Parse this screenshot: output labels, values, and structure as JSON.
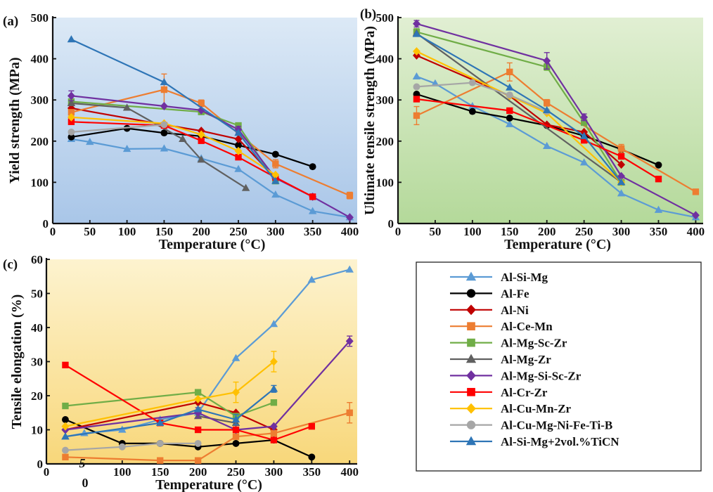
{
  "chart_data": [
    {
      "type": "line",
      "panel_label": "(a)",
      "xlabel": "Temperature (°C)",
      "ylabel": "Yield strength (MPa)",
      "xlim": [
        0,
        410
      ],
      "ylim": [
        0,
        500
      ],
      "xticks": [
        0,
        50,
        100,
        150,
        200,
        250,
        300,
        350,
        400
      ],
      "yticks": [
        0,
        100,
        200,
        300,
        400,
        500
      ],
      "background": [
        "#dce9f6",
        "#a9c6e8"
      ],
      "series": [
        {
          "name": "Al-Si-Mg",
          "x": [
            25,
            50,
            100,
            150,
            200,
            250,
            300,
            350,
            400
          ],
          "y": [
            205,
            198,
            181,
            182,
            158,
            132,
            70,
            30,
            15
          ]
        },
        {
          "name": "Al-Fe",
          "x": [
            25,
            100,
            150,
            200,
            250,
            300,
            350
          ],
          "y": [
            210,
            231,
            220,
            212,
            190,
            168,
            138
          ]
        },
        {
          "name": "Al-Ni",
          "x": [
            25,
            150,
            200,
            250,
            300
          ],
          "y": [
            280,
            240,
            225,
            205,
            110
          ]
        },
        {
          "name": "Al-Ce-Mn",
          "x": [
            25,
            150,
            200,
            300,
            400
          ],
          "y": [
            270,
            325,
            292,
            145,
            68
          ],
          "err": [
            0,
            38,
            8,
            10,
            8
          ]
        },
        {
          "name": "Al-Mg-Sc-Zr",
          "x": [
            25,
            200,
            250,
            300
          ],
          "y": [
            296,
            271,
            238,
            103
          ]
        },
        {
          "name": "Al-Mg-Zr",
          "x": [
            25,
            100,
            175,
            200,
            260
          ],
          "y": [
            292,
            281,
            205,
            155,
            86
          ]
        },
        {
          "name": "Al-Mg-Si-Sc-Zr",
          "x": [
            25,
            150,
            200,
            250,
            300,
            350,
            400
          ],
          "y": [
            310,
            285,
            275,
            228,
            110,
            65,
            15
          ],
          "err": [
            12,
            0,
            0,
            8,
            0,
            0,
            0
          ]
        },
        {
          "name": "Al-Cr-Zr",
          "x": [
            25,
            150,
            200,
            250,
            300,
            350
          ],
          "y": [
            247,
            238,
            201,
            161,
            112,
            65
          ]
        },
        {
          "name": "Al-Cu-Mn-Zr",
          "x": [
            25,
            150,
            200,
            250,
            300
          ],
          "y": [
            258,
            243,
            216,
            176,
            118
          ]
        },
        {
          "name": "Al-Cu-Mg-Ni-Fe-Ti-B",
          "x": [
            25,
            150
          ],
          "y": [
            222,
            240
          ]
        },
        {
          "name": "Al-Si-Mg+2vol.%TiCN",
          "x": [
            25,
            150,
            250,
            300
          ],
          "y": [
            447,
            343,
            220,
            103
          ]
        }
      ]
    },
    {
      "type": "line",
      "panel_label": "(b)",
      "xlabel": "Temperature (°C)",
      "ylabel": "Ultimate tensile strength (MPa)",
      "xlim": [
        0,
        410
      ],
      "ylim": [
        0,
        500
      ],
      "xticks": [
        0,
        50,
        100,
        150,
        200,
        250,
        300,
        350,
        400
      ],
      "yticks": [
        0,
        100,
        200,
        300,
        400,
        500
      ],
      "background": [
        "#e1efd3",
        "#b4d99a"
      ],
      "series": [
        {
          "name": "Al-Si-Mg",
          "x": [
            25,
            50,
            100,
            150,
            200,
            250,
            300,
            350,
            400
          ],
          "y": [
            357,
            340,
            285,
            241,
            188,
            148,
            73,
            33,
            15
          ]
        },
        {
          "name": "Al-Fe",
          "x": [
            25,
            100,
            150,
            200,
            250,
            300,
            350
          ],
          "y": [
            314,
            272,
            256,
            238,
            213,
            180,
            142
          ]
        },
        {
          "name": "Al-Ni",
          "x": [
            25,
            150,
            200,
            250,
            300
          ],
          "y": [
            408,
            310,
            240,
            222,
            143
          ]
        },
        {
          "name": "Al-Ce-Mn",
          "x": [
            25,
            150,
            200,
            300,
            400
          ],
          "y": [
            262,
            368,
            293,
            182,
            77
          ],
          "err": [
            22,
            22,
            8,
            10,
            0
          ]
        },
        {
          "name": "Al-Mg-Sc-Zr",
          "x": [
            25,
            200,
            250,
            300
          ],
          "y": [
            465,
            380,
            245,
            100
          ],
          "err": [
            8,
            8,
            0,
            0
          ]
        },
        {
          "name": "Al-Mg-Zr",
          "x": [
            25,
            300
          ],
          "y": [
            462,
            100
          ]
        },
        {
          "name": "Al-Mg-Si-Sc-Zr",
          "x": [
            25,
            200,
            250,
            300,
            400
          ],
          "y": [
            485,
            395,
            258,
            115,
            20
          ],
          "err": [
            8,
            20,
            8,
            0,
            0
          ]
        },
        {
          "name": "Al-Cr-Zr",
          "x": [
            25,
            150,
            250,
            300,
            350
          ],
          "y": [
            302,
            274,
            202,
            163,
            108
          ]
        },
        {
          "name": "Al-Cu-Mn-Zr",
          "x": [
            25,
            150,
            200,
            300
          ],
          "y": [
            418,
            310,
            268,
            100
          ]
        },
        {
          "name": "Al-Cu-Mg-Ni-Fe-Ti-B",
          "x": [
            25,
            100,
            150,
            200
          ],
          "y": [
            332,
            342,
            312,
            272
          ]
        },
        {
          "name": "Al-Si-Mg+2vol.%TiCN",
          "x": [
            25,
            150,
            200,
            250,
            300
          ],
          "y": [
            460,
            330,
            275,
            212,
            100
          ]
        }
      ]
    },
    {
      "type": "line",
      "panel_label": "(c)",
      "xlabel": "Temperature (°C)",
      "ylabel": "Tensile elongation (%)",
      "xlim": [
        0,
        410
      ],
      "ylim": [
        0,
        60
      ],
      "xticks": [
        0,
        100,
        150,
        200,
        250,
        300,
        350,
        400
      ],
      "yticks": [
        0,
        10,
        20,
        30,
        40,
        50,
        60
      ],
      "background": [
        "#fdf3cf",
        "#f8d77a"
      ],
      "series": [
        {
          "name": "Al-Si-Mg",
          "x": [
            25,
            50,
            100,
            150,
            200,
            250,
            300,
            350,
            400
          ],
          "y": [
            8,
            9,
            10,
            13,
            15,
            31,
            41,
            54,
            57
          ]
        },
        {
          "name": "Al-Fe",
          "x": [
            25,
            100,
            150,
            200,
            250,
            300,
            350
          ],
          "y": [
            13,
            6,
            6,
            5,
            6,
            7,
            2
          ]
        },
        {
          "name": "Al-Ni",
          "x": [
            25,
            200,
            250,
            300
          ],
          "y": [
            10,
            18,
            15,
            10
          ]
        },
        {
          "name": "Al-Ce-Mn",
          "x": [
            25,
            150,
            200,
            250,
            300,
            400
          ],
          "y": [
            2,
            1,
            1,
            8,
            9,
            15
          ],
          "err": [
            0,
            0,
            0,
            0,
            0,
            3
          ]
        },
        {
          "name": "Al-Mg-Sc-Zr",
          "x": [
            25,
            200,
            250,
            300
          ],
          "y": [
            17,
            21,
            14,
            18
          ]
        },
        {
          "name": "Al-Mg-Zr",
          "x": [
            200,
            250
          ],
          "y": [
            14,
            12
          ]
        },
        {
          "name": "Al-Mg-Si-Sc-Zr",
          "x": [
            25,
            200,
            250,
            300,
            400
          ],
          "y": [
            10,
            15,
            10,
            11,
            36
          ],
          "err": [
            0,
            1.5,
            0,
            0,
            1.5
          ]
        },
        {
          "name": "Al-Cr-Zr",
          "x": [
            25,
            150,
            200,
            250,
            300,
            350
          ],
          "y": [
            29,
            12,
            10,
            10,
            7,
            11
          ]
        },
        {
          "name": "Al-Cu-Mn-Zr",
          "x": [
            25,
            200,
            250,
            300
          ],
          "y": [
            11,
            19,
            21,
            30
          ],
          "err": [
            0,
            0,
            3,
            3
          ]
        },
        {
          "name": "Al-Cu-Mg-Ni-Fe-Ti-B",
          "x": [
            25,
            100,
            150,
            200
          ],
          "y": [
            4,
            5,
            6,
            6
          ]
        },
        {
          "name": "Al-Si-Mg+2vol.%TiCN",
          "x": [
            25,
            150,
            200,
            250,
            300
          ],
          "y": [
            8,
            12,
            16,
            13,
            22
          ],
          "err": [
            0,
            0,
            0,
            1.5,
            1
          ]
        }
      ]
    }
  ],
  "legend": {
    "entries": [
      {
        "name": "Al-Si-Mg",
        "color": "#5b9bd5",
        "marker": "triangle"
      },
      {
        "name": "Al-Fe",
        "color": "#000000",
        "marker": "circle"
      },
      {
        "name": "Al-Ni",
        "color": "#c00000",
        "marker": "diamond"
      },
      {
        "name": "Al-Ce-Mn",
        "color": "#ed7d31",
        "marker": "square"
      },
      {
        "name": "Al-Mg-Sc-Zr",
        "color": "#70ad47",
        "marker": "square"
      },
      {
        "name": "Al-Mg-Zr",
        "color": "#606060",
        "marker": "triangle"
      },
      {
        "name": "Al-Mg-Si-Sc-Zr",
        "color": "#7030a0",
        "marker": "diamond"
      },
      {
        "name": "Al-Cr-Zr",
        "color": "#ff0000",
        "marker": "square"
      },
      {
        "name": "Al-Cu-Mn-Zr",
        "color": "#ffc000",
        "marker": "diamond"
      },
      {
        "name": "Al-Cu-Mg-Ni-Fe-Ti-B",
        "color": "#a6a6a6",
        "marker": "circle"
      },
      {
        "name": "Al-Si-Mg+2vol.%TiCN",
        "color": "#2e75b6",
        "marker": "triangle"
      }
    ]
  },
  "stray_labels": [
    "5",
    "0"
  ]
}
